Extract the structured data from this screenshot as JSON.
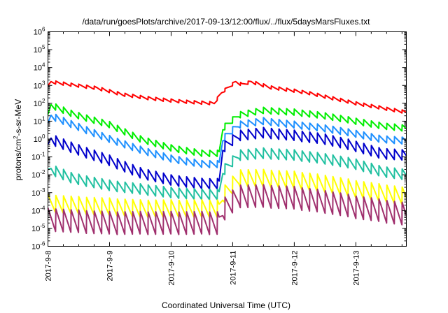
{
  "chart_data": {
    "type": "line",
    "title": "/data/run/goesPlots/archive/2017-09-13/12:00/flux/../flux/5daysMarsFluxes.txt",
    "xlabel": "Coordinated Universal Time (UTC)",
    "ylabel": {
      "pre": "protons/cm",
      "sup": "2",
      "post": "-s-sr-MeV"
    },
    "yscale": "log",
    "ylim_exp": [
      -6,
      6
    ],
    "ytick_exponents": [
      -6,
      -5,
      -4,
      -3,
      -2,
      -1,
      0,
      1,
      2,
      3,
      4,
      5,
      6
    ],
    "ytick_base": "10",
    "xlim_days": [
      0,
      5.82
    ],
    "x_tick_labels": [
      "2017-9-8",
      "2017-9-9",
      "2017-9-10",
      "2017-9-11",
      "2017-9-12",
      "2017-9-13"
    ],
    "grid": false,
    "legend": "none",
    "onset_day": 2.82,
    "series_colors": [
      "#ff0000",
      "#00ee00",
      "#1e90ff",
      "#0000cc",
      "#20c0a0",
      "#ffff00",
      "#a0306e"
    ],
    "series": [
      {
        "color": "#ff0000",
        "amp": 0.09,
        "x": [
          0,
          0.05,
          0.35,
          0.8,
          1.2,
          1.6,
          2.0,
          2.4,
          2.7,
          2.82,
          3.05,
          3.15,
          3.3,
          3.6,
          4.2,
          5.0,
          5.82
        ],
        "log_values": [
          2.9,
          3.2,
          3.05,
          2.85,
          2.5,
          2.3,
          2.15,
          2.05,
          2.0,
          2.6,
          3.2,
          3.05,
          3.2,
          2.9,
          2.6,
          2.0,
          1.5
        ]
      },
      {
        "color": "#00ee00",
        "amp": 0.18,
        "x": [
          0,
          0.05,
          0.4,
          1.0,
          1.5,
          2.0,
          2.5,
          2.78,
          2.84,
          3.1,
          3.5,
          4.0,
          4.5,
          5.0,
          5.4,
          5.82
        ],
        "log_values": [
          1.2,
          1.9,
          1.4,
          0.8,
          0.0,
          -0.5,
          -0.8,
          -0.8,
          0.6,
          1.35,
          1.6,
          1.5,
          1.3,
          1.0,
          0.75,
          0.6
        ]
      },
      {
        "color": "#1e90ff",
        "amp": 0.2,
        "x": [
          0,
          0.05,
          0.4,
          1.0,
          1.5,
          2.0,
          2.5,
          2.78,
          2.84,
          3.1,
          3.5,
          4.0,
          4.5,
          5.0,
          5.4,
          5.82
        ],
        "log_values": [
          0.7,
          1.3,
          0.8,
          0.0,
          -0.6,
          -1.1,
          -1.4,
          -1.4,
          0.0,
          0.8,
          1.0,
          0.8,
          0.6,
          0.3,
          0.0,
          -0.1
        ]
      },
      {
        "color": "#0000cc",
        "amp": 0.3,
        "x": [
          0,
          0.05,
          0.4,
          1.0,
          1.5,
          2.0,
          2.5,
          2.78,
          2.84,
          3.1,
          3.5,
          4.0,
          4.5,
          5.0,
          5.4,
          5.82
        ],
        "log_values": [
          -0.6,
          0.0,
          -0.5,
          -1.2,
          -1.9,
          -2.3,
          -2.5,
          -2.5,
          -0.5,
          0.2,
          0.35,
          0.2,
          0.0,
          -0.4,
          -0.8,
          -0.9
        ]
      },
      {
        "color": "#20c0a0",
        "amp": 0.3,
        "x": [
          0,
          0.05,
          0.4,
          1.0,
          1.5,
          2.0,
          2.5,
          2.78,
          2.84,
          3.1,
          3.5,
          4.0,
          4.5,
          5.0,
          5.4,
          5.82
        ],
        "log_values": [
          -2.0,
          -1.7,
          -2.2,
          -2.6,
          -2.8,
          -3.0,
          -3.1,
          -3.1,
          -1.8,
          -0.9,
          -0.8,
          -0.9,
          -1.1,
          -1.4,
          -1.8,
          -2.0
        ]
      },
      {
        "color": "#ffff00",
        "amp": 0.5,
        "x": [
          0,
          0.4,
          1.0,
          1.5,
          2.0,
          2.5,
          2.78,
          2.84,
          3.1,
          3.5,
          4.0,
          4.5,
          5.0,
          5.4,
          5.82
        ],
        "log_values": [
          -3.6,
          -3.7,
          -3.8,
          -3.9,
          -3.9,
          -3.9,
          -3.9,
          -3.2,
          -2.2,
          -2.2,
          -2.3,
          -2.5,
          -2.8,
          -3.0,
          -3.2
        ]
      },
      {
        "color": "#a0306e",
        "amp": 0.65,
        "x": [
          0,
          0.4,
          1.0,
          1.5,
          2.0,
          2.5,
          2.78,
          2.84,
          3.1,
          3.5,
          4.0,
          4.5,
          5.0,
          5.4,
          5.82
        ],
        "log_values": [
          -4.5,
          -4.6,
          -4.7,
          -4.7,
          -4.7,
          -4.7,
          -4.7,
          -4.0,
          -3.2,
          -3.2,
          -3.3,
          -3.5,
          -3.8,
          -4.0,
          -4.2
        ]
      }
    ]
  }
}
